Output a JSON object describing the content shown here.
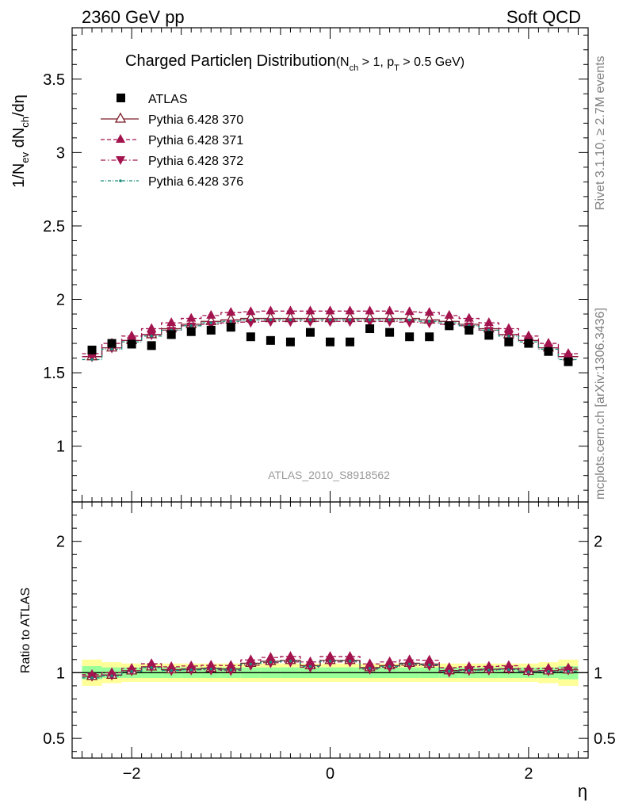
{
  "header": {
    "left": "2360 GeV pp",
    "right": "Soft QCD"
  },
  "side_labels": {
    "rivet": "Rivet 3.1.10, ≥ 2.7M events",
    "mcplots": "mcplots.cern.ch [arXiv:1306.3436]"
  },
  "watermark": "ATLAS_2010_S8918562",
  "colors": {
    "data": "#000000",
    "py370": "#7b1a28",
    "py371": "#a3134e",
    "py372": "#a3134e",
    "py376": "#1a8c7a",
    "band_inner": "#99ff99",
    "band_outer": "#ffff99"
  },
  "chart_data": [
    {
      "type": "scatter",
      "title": "Charged Particleη Distribution",
      "title_cut_a": "(N",
      "title_cut_a_sub": "ch",
      "title_cut_b": " > 1, p",
      "title_cut_b_sub": "T",
      "title_cut_c": " > 0.5 GeV)",
      "ylabel": "1/N_ev dN_ch/dη",
      "ylabel_parts": {
        "a": "1/N",
        "a_sub": "ev",
        "b": " dN",
        "b_sub": "ch",
        "c": "/dη"
      },
      "xlim": [
        -2.6,
        2.6
      ],
      "ylim": [
        0.62,
        3.85
      ],
      "yticks": [
        1,
        1.5,
        2,
        2.5,
        3,
        3.5
      ],
      "ytick_labels": [
        "1",
        "1.5",
        "2",
        "2.5",
        "3",
        "3.5"
      ],
      "x": [
        -2.4,
        -2.2,
        -2.0,
        -1.8,
        -1.6,
        -1.4,
        -1.2,
        -1.0,
        -0.8,
        -0.6,
        -0.4,
        -0.2,
        0.0,
        0.2,
        0.4,
        0.6,
        0.8,
        1.0,
        1.2,
        1.4,
        1.6,
        1.8,
        2.0,
        2.2,
        2.4
      ],
      "legend_position": "top-left",
      "series": [
        {
          "name": "ATLAS",
          "marker": "square",
          "values": [
            1.655,
            1.7,
            1.695,
            1.685,
            1.76,
            1.78,
            1.79,
            1.81,
            1.745,
            1.72,
            1.71,
            1.775,
            1.71,
            1.71,
            1.8,
            1.775,
            1.745,
            1.745,
            1.82,
            1.79,
            1.755,
            1.71,
            1.7,
            1.645,
            1.575
          ]
        },
        {
          "name": "Pythia 6.428 370",
          "marker": "triangle-open",
          "values": [
            1.61,
            1.67,
            1.72,
            1.76,
            1.8,
            1.83,
            1.85,
            1.86,
            1.87,
            1.87,
            1.87,
            1.87,
            1.87,
            1.87,
            1.87,
            1.87,
            1.87,
            1.86,
            1.85,
            1.83,
            1.8,
            1.76,
            1.72,
            1.67,
            1.61
          ]
        },
        {
          "name": "Pythia 6.428 371",
          "marker": "triangle-filled",
          "values": [
            1.63,
            1.7,
            1.75,
            1.8,
            1.84,
            1.87,
            1.89,
            1.91,
            1.915,
            1.92,
            1.92,
            1.92,
            1.92,
            1.92,
            1.92,
            1.92,
            1.915,
            1.91,
            1.89,
            1.87,
            1.84,
            1.8,
            1.75,
            1.7,
            1.63
          ]
        },
        {
          "name": "Pythia 6.428 372",
          "marker": "triangle-down-filled",
          "values": [
            1.61,
            1.67,
            1.72,
            1.76,
            1.79,
            1.82,
            1.83,
            1.84,
            1.845,
            1.85,
            1.85,
            1.85,
            1.85,
            1.85,
            1.85,
            1.85,
            1.845,
            1.84,
            1.83,
            1.82,
            1.79,
            1.76,
            1.72,
            1.67,
            1.61
          ]
        },
        {
          "name": "Pythia 6.428 376",
          "marker": "dot",
          "values": [
            1.59,
            1.66,
            1.71,
            1.75,
            1.79,
            1.82,
            1.84,
            1.85,
            1.86,
            1.86,
            1.86,
            1.86,
            1.86,
            1.86,
            1.86,
            1.86,
            1.86,
            1.85,
            1.84,
            1.82,
            1.79,
            1.75,
            1.71,
            1.66,
            1.59
          ]
        }
      ]
    },
    {
      "type": "scatter",
      "ylabel": "Ratio to ATLAS",
      "xlabel": "η",
      "xlim": [
        -2.6,
        2.6
      ],
      "ylim": [
        0.35,
        2.3
      ],
      "yticks": [
        0.5,
        1,
        2
      ],
      "ytick_labels": [
        "0.5",
        "1",
        "2"
      ],
      "xticks": [
        -2,
        0,
        2
      ],
      "xtick_labels": [
        "−2",
        "0",
        "2"
      ],
      "x": [
        -2.4,
        -2.2,
        -2.0,
        -1.8,
        -1.6,
        -1.4,
        -1.2,
        -1.0,
        -0.8,
        -0.6,
        -0.4,
        -0.2,
        0.0,
        0.2,
        0.4,
        0.6,
        0.8,
        1.0,
        1.2,
        1.4,
        1.6,
        1.8,
        2.0,
        2.2,
        2.4
      ],
      "band_inner_halfwidth": [
        0.05,
        0.04,
        0.04,
        0.04,
        0.04,
        0.04,
        0.04,
        0.04,
        0.04,
        0.04,
        0.04,
        0.04,
        0.04,
        0.04,
        0.04,
        0.04,
        0.04,
        0.04,
        0.04,
        0.04,
        0.04,
        0.04,
        0.04,
        0.04,
        0.05
      ],
      "band_outer_halfwidth": [
        0.1,
        0.08,
        0.07,
        0.07,
        0.07,
        0.07,
        0.07,
        0.07,
        0.07,
        0.07,
        0.07,
        0.07,
        0.07,
        0.07,
        0.07,
        0.07,
        0.07,
        0.07,
        0.07,
        0.07,
        0.07,
        0.07,
        0.07,
        0.08,
        0.1
      ],
      "series": [
        {
          "name": "Pythia 6.428 370",
          "marker": "triangle-open",
          "values": [
            0.973,
            0.982,
            1.015,
            1.045,
            1.023,
            1.028,
            1.034,
            1.028,
            1.072,
            1.087,
            1.094,
            1.054,
            1.094,
            1.094,
            1.039,
            1.054,
            1.072,
            1.066,
            1.016,
            1.022,
            1.026,
            1.029,
            1.012,
            1.015,
            1.022
          ]
        },
        {
          "name": "Pythia 6.428 371",
          "marker": "triangle-filled",
          "values": [
            0.985,
            1.0,
            1.032,
            1.068,
            1.045,
            1.051,
            1.056,
            1.055,
            1.097,
            1.116,
            1.123,
            1.082,
            1.123,
            1.123,
            1.067,
            1.082,
            1.097,
            1.095,
            1.038,
            1.045,
            1.048,
            1.053,
            1.029,
            1.033,
            1.035
          ]
        },
        {
          "name": "Pythia 6.428 372",
          "marker": "triangle-down-filled",
          "values": [
            0.973,
            0.982,
            1.015,
            1.045,
            1.017,
            1.022,
            1.022,
            1.017,
            1.057,
            1.076,
            1.082,
            1.042,
            1.082,
            1.082,
            1.028,
            1.042,
            1.057,
            1.054,
            1.005,
            1.017,
            1.02,
            1.029,
            1.012,
            1.015,
            1.022
          ]
        },
        {
          "name": "Pythia 6.428 376",
          "marker": "dot",
          "values": [
            0.961,
            0.976,
            1.009,
            1.039,
            1.017,
            1.022,
            1.028,
            1.022,
            1.066,
            1.081,
            1.088,
            1.048,
            1.088,
            1.088,
            1.033,
            1.048,
            1.066,
            1.06,
            1.011,
            1.017,
            1.02,
            1.023,
            1.006,
            1.009,
            1.01
          ]
        }
      ]
    }
  ]
}
